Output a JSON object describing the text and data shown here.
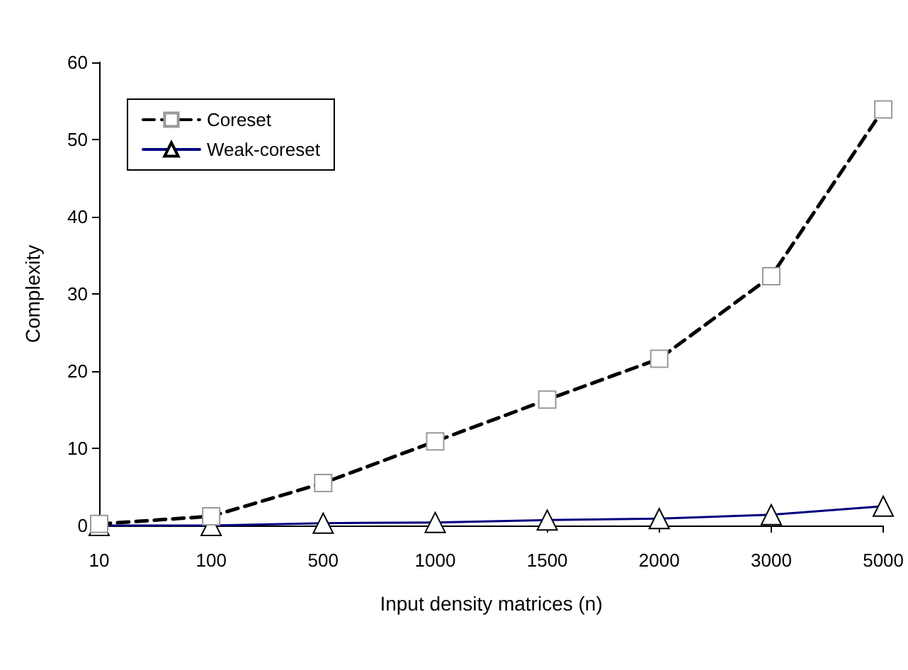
{
  "chart_data": {
    "type": "line",
    "xlabel": "Input density matrices (n)",
    "ylabel": "Complexity",
    "categories": [
      "10",
      "100",
      "500",
      "1000",
      "1500",
      "2000",
      "3000",
      "5000"
    ],
    "series": [
      {
        "name": "Coreset",
        "color": "#000000",
        "marker": "square",
        "line_style": "dashed",
        "values": [
          0.2,
          1.2,
          5.5,
          10.9,
          16.3,
          21.6,
          32.3,
          53.9
        ]
      },
      {
        "name": "Weak-coreset",
        "color": "#000080",
        "marker": "triangle",
        "line_style": "solid",
        "values": [
          0,
          0,
          0.3,
          0.4,
          0.7,
          0.9,
          1.4,
          2.5
        ]
      }
    ],
    "ylim": [
      0,
      60
    ],
    "yticks": [
      0,
      10,
      20,
      30,
      40,
      50,
      60
    ],
    "grid": false,
    "legend": "top left"
  }
}
